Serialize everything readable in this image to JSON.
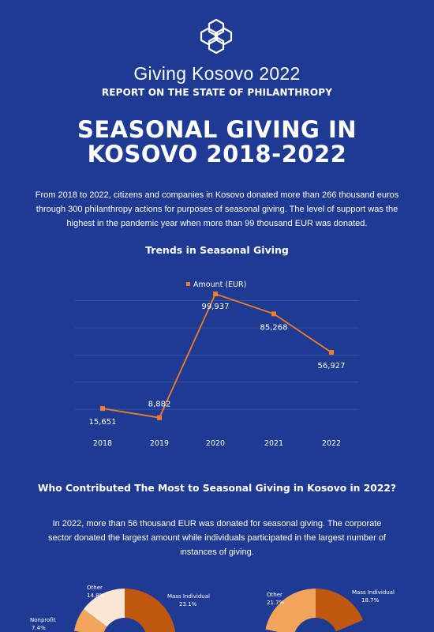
{
  "brand": "Giving Kosovo 2022",
  "subtitle": "REPORT ON THE STATE OF PHILANTHROPY",
  "headline_line1": "SEASONAL GIVING IN",
  "headline_line2": "KOSOVO 2018-2022",
  "intro": "From 2018 to 2022, citizens and companies in Kosovo donated more than 266 thousand euros through 300 philanthropy actions for purposes of seasonal giving. The level of support was the highest in the pandemic year when more than 99 thousand EUR was donated.",
  "chart_title": "Trends in Seasonal Giving",
  "colors": {
    "background": "#1f3a93",
    "line": "#f07e26",
    "grid": "#3f58a6",
    "slice_dark": "#c0580f",
    "slice_light": "#fbe6d4",
    "slice_mid": "#f2a55a"
  },
  "chart_data": [
    {
      "type": "line",
      "title": "Trends in Seasonal Giving",
      "categories": [
        "2018",
        "2019",
        "2020",
        "2021",
        "2022"
      ],
      "series": [
        {
          "name": "Amount (EUR)",
          "values": [
            15651,
            8882,
            99937,
            85268,
            56927
          ]
        }
      ],
      "data_labels": [
        "15,651",
        "8,882",
        "99,937",
        "85,268",
        "56,927"
      ],
      "ylim": [
        0,
        100000
      ],
      "legend": "top-center",
      "grid": true
    },
    {
      "type": "pie",
      "slices": [
        {
          "label": "Mass Individual",
          "value_label": "23.1%",
          "value": 23.1
        },
        {
          "label": "Other",
          "value_label": "14.8%",
          "value": 14.8
        },
        {
          "label": "Nonprofit",
          "value_label": "7.4%",
          "value": 7.4
        }
      ]
    },
    {
      "type": "pie",
      "slices": [
        {
          "label": "Mass Individual",
          "value_label": "18.7%",
          "value": 18.7
        },
        {
          "label": "Other",
          "value_label": "21.7%",
          "value": 21.7
        }
      ]
    }
  ],
  "question_title": "Who Contributed The Most to Seasonal Giving in Kosovo in 2022?",
  "question_text": "In 2022, more than 56 thousand EUR was donated for seasonal giving. The corporate sector donated the largest amount while individuals participated in the largest number of instances of giving."
}
